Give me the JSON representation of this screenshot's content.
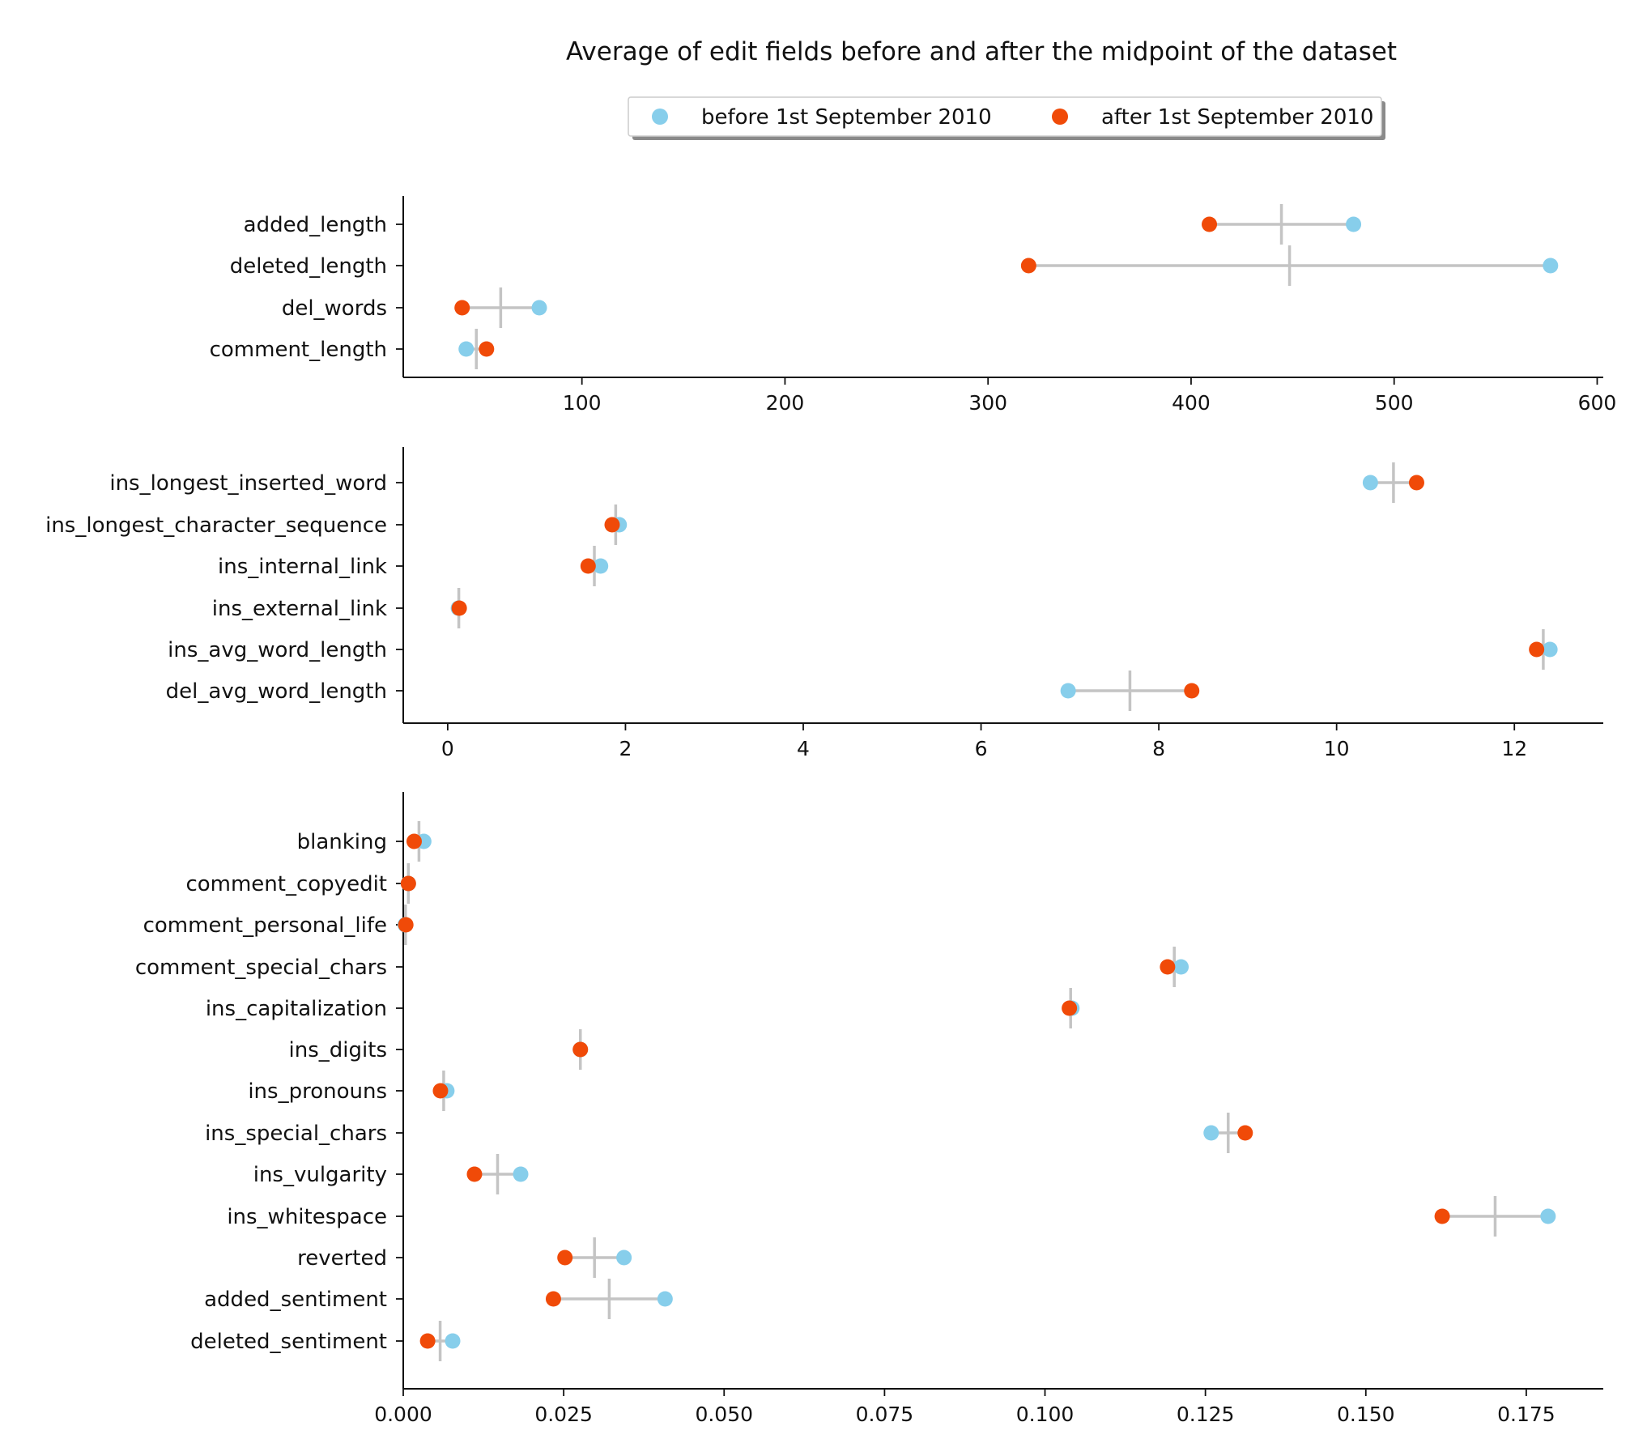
{
  "colors": {
    "before": "#87ceeb",
    "after": "#f04a08",
    "range": "#c4c4c4"
  },
  "chart_data": {
    "type": "dumbbell",
    "title": "Average of edit fields before and after the midpoint of the dataset",
    "legend": {
      "placement": "top-center",
      "entries": [
        {
          "key": "before",
          "label": "before 1st September 2010"
        },
        {
          "key": "after",
          "label": "after 1st September 2010"
        }
      ]
    },
    "panels": [
      {
        "xlim": [
          12,
          603
        ],
        "xticks": [
          100,
          200,
          300,
          400,
          500,
          600
        ],
        "xtick_labels": [
          "100",
          "200",
          "300",
          "400",
          "500",
          "600"
        ],
        "rows": [
          {
            "label": "added_length",
            "before": 480,
            "after": 409
          },
          {
            "label": "deleted_length",
            "before": 577,
            "after": 320
          },
          {
            "label": "del_words",
            "before": 79,
            "after": 41
          },
          {
            "label": "comment_length",
            "before": 43,
            "after": 53
          }
        ]
      },
      {
        "xlim": [
          -0.5,
          13.0
        ],
        "xticks": [
          0,
          2,
          4,
          6,
          8,
          10,
          12
        ],
        "xtick_labels": [
          "0",
          "2",
          "4",
          "6",
          "8",
          "10",
          "12"
        ],
        "rows": [
          {
            "label": "ins_longest_inserted_word",
            "before": 10.38,
            "after": 10.9
          },
          {
            "label": "ins_longest_character_sequence",
            "before": 1.93,
            "after": 1.85
          },
          {
            "label": "ins_internal_link",
            "before": 1.72,
            "after": 1.58
          },
          {
            "label": "ins_external_link",
            "before": 0.12,
            "after": 0.13
          },
          {
            "label": "ins_avg_word_length",
            "before": 12.4,
            "after": 12.25
          },
          {
            "label": "del_avg_word_length",
            "before": 6.98,
            "after": 8.37
          }
        ]
      },
      {
        "xlim": [
          0.0,
          0.187
        ],
        "xticks": [
          0.0,
          0.025,
          0.05,
          0.075,
          0.1,
          0.125,
          0.15,
          0.175
        ],
        "xtick_labels": [
          "0.000",
          "0.025",
          "0.050",
          "0.075",
          "0.100",
          "0.125",
          "0.150",
          "0.175"
        ],
        "rows": [
          {
            "label": "blanking",
            "before": 0.0032,
            "after": 0.0017
          },
          {
            "label": "comment_copyedit",
            "before": 0.0008,
            "after": 0.0008
          },
          {
            "label": "comment_personal_life",
            "before": 0.0003,
            "after": 0.0004
          },
          {
            "label": "comment_special_chars",
            "before": 0.1212,
            "after": 0.1191
          },
          {
            "label": "ins_capitalization",
            "before": 0.1042,
            "after": 0.1038
          },
          {
            "label": "ins_digits",
            "before": 0.0276,
            "after": 0.0276
          },
          {
            "label": "ins_pronouns",
            "before": 0.0068,
            "after": 0.0058
          },
          {
            "label": "ins_special_chars",
            "before": 0.1259,
            "after": 0.1312
          },
          {
            "label": "ins_vulgarity",
            "before": 0.0183,
            "after": 0.0111
          },
          {
            "label": "ins_whitespace",
            "before": 0.1784,
            "after": 0.1619
          },
          {
            "label": "reverted",
            "before": 0.0344,
            "after": 0.0252
          },
          {
            "label": "added_sentiment",
            "before": 0.0408,
            "after": 0.0234
          },
          {
            "label": "deleted_sentiment",
            "before": 0.0077,
            "after": 0.0038
          }
        ]
      }
    ]
  }
}
